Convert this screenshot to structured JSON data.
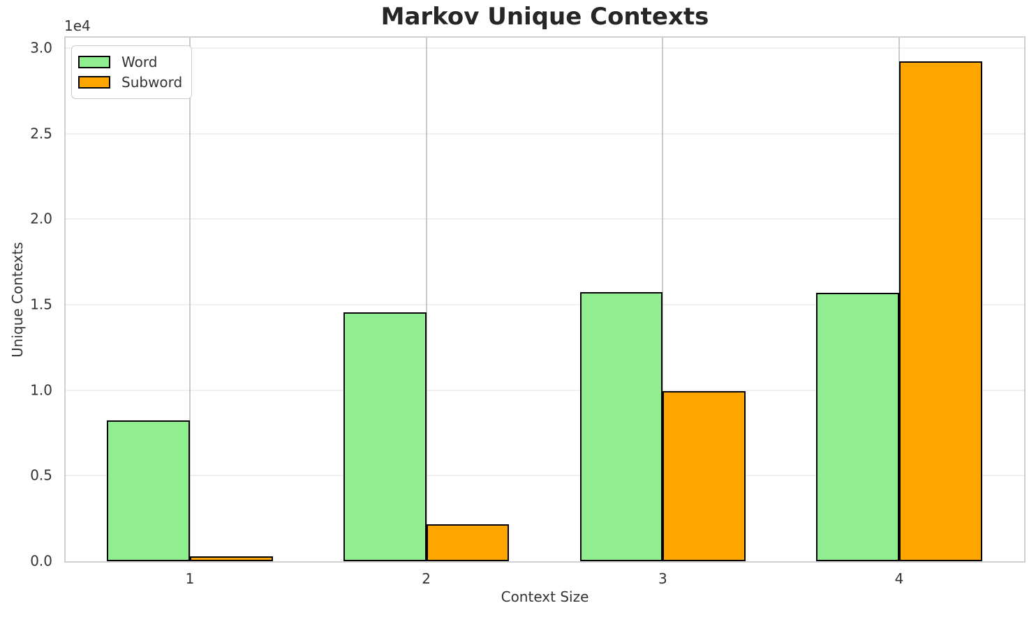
{
  "title": "Markov Unique Contexts",
  "chart_data": {
    "type": "bar",
    "title": "Markov Unique Contexts",
    "xlabel": "Context Size",
    "ylabel": "Unique Contexts",
    "y_offset_label": "1e4",
    "categories": [
      "1",
      "2",
      "3",
      "4"
    ],
    "series": [
      {
        "name": "Word",
        "color": "#90EE90",
        "values": [
          8250,
          14560,
          15750,
          15700
        ]
      },
      {
        "name": "Subword",
        "color": "#FFA500",
        "values": [
          290,
          2160,
          9930,
          29230
        ]
      }
    ],
    "bar_edge_color": "#000000",
    "bar_width_data_units": 0.35,
    "xlim": [
      0.4745,
      4.5285
    ],
    "ylim": [
      0,
      30620
    ],
    "yticks": [
      0,
      5000,
      10000,
      15000,
      20000,
      25000,
      30000
    ],
    "ytick_labels": [
      "0.0",
      "0.5",
      "1.0",
      "1.5",
      "2.0",
      "2.5",
      "3.0"
    ],
    "grid": true,
    "legend_position": "upper left"
  },
  "colors": {
    "background": "#ffffff",
    "grid_horizontal": "#f0f0f0",
    "grid_vertical": "#cbcbcb",
    "spine": "#d0d0d0",
    "text": "#333333",
    "title_text": "#262626",
    "bar_word": "#90EE90",
    "bar_subword": "#FFA500",
    "bar_edge": "#000000"
  }
}
